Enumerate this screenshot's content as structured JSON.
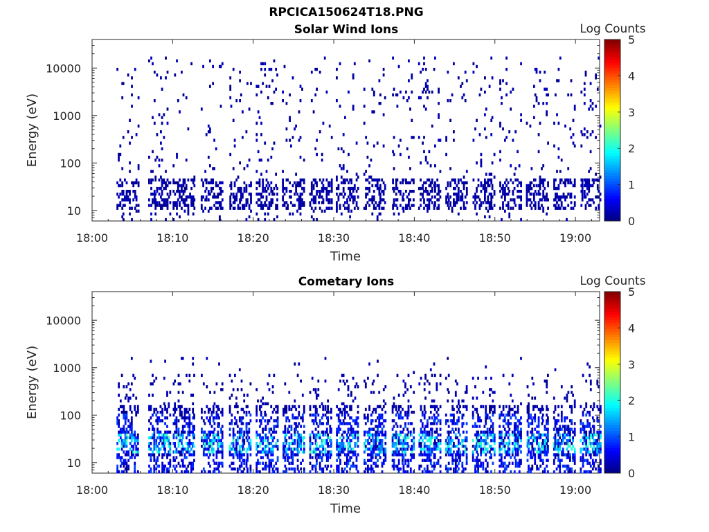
{
  "figure_title": "RPCICA150624T18.PNG",
  "chart_data": [
    {
      "type": "heatmap",
      "title": "Solar Wind Ions",
      "xlabel": "Time",
      "ylabel": "Energy (eV)",
      "yscale": "log",
      "ylim": [
        6,
        40000
      ],
      "xlim": [
        "18:00",
        "19:03"
      ],
      "x_ticks": [
        "18:00",
        "18:10",
        "18:20",
        "18:30",
        "18:40",
        "18:50",
        "19:00"
      ],
      "y_ticks": [
        "10",
        "100",
        "1000",
        "10000"
      ],
      "colorbar": {
        "label": "Log Counts",
        "range": [
          0,
          5
        ],
        "ticks": [
          "0",
          "1",
          "2",
          "3",
          "4",
          "5"
        ],
        "colormap": "jet"
      },
      "grid": false,
      "scan_starts_min": [
        3,
        7,
        10,
        13.5,
        17,
        20.3,
        23.6,
        27,
        30.3,
        33.7,
        37.2,
        40.5,
        43.8,
        47.2,
        50.5,
        53.9,
        57.2,
        60.6
      ],
      "description": "Sparse low-count (log ~0) detections: dense clusters at 10-40 eV, scattered single counts up to ~15000 eV"
    },
    {
      "type": "heatmap",
      "title": "Cometary Ions",
      "xlabel": "Time",
      "ylabel": "Energy (eV)",
      "yscale": "log",
      "ylim": [
        6,
        40000
      ],
      "xlim": [
        "18:00",
        "19:03"
      ],
      "x_ticks": [
        "18:00",
        "18:10",
        "18:20",
        "18:30",
        "18:40",
        "18:50",
        "19:00"
      ],
      "y_ticks": [
        "10",
        "100",
        "1000",
        "10000"
      ],
      "colorbar": {
        "label": "Log Counts",
        "range": [
          0,
          5
        ],
        "ticks": [
          "0",
          "1",
          "2",
          "3",
          "4",
          "5"
        ],
        "colormap": "jet"
      },
      "grid": false,
      "scan_starts_min": [
        3,
        7,
        10,
        13.5,
        17,
        20.3,
        23.6,
        27,
        30.3,
        33.7,
        37.2,
        40.5,
        43.8,
        47.2,
        50.5,
        53.9,
        57.2,
        60.6
      ],
      "description": "Bursts of counts between ~6 and ~600 eV with peak log counts ~2 near 15-40 eV"
    }
  ]
}
